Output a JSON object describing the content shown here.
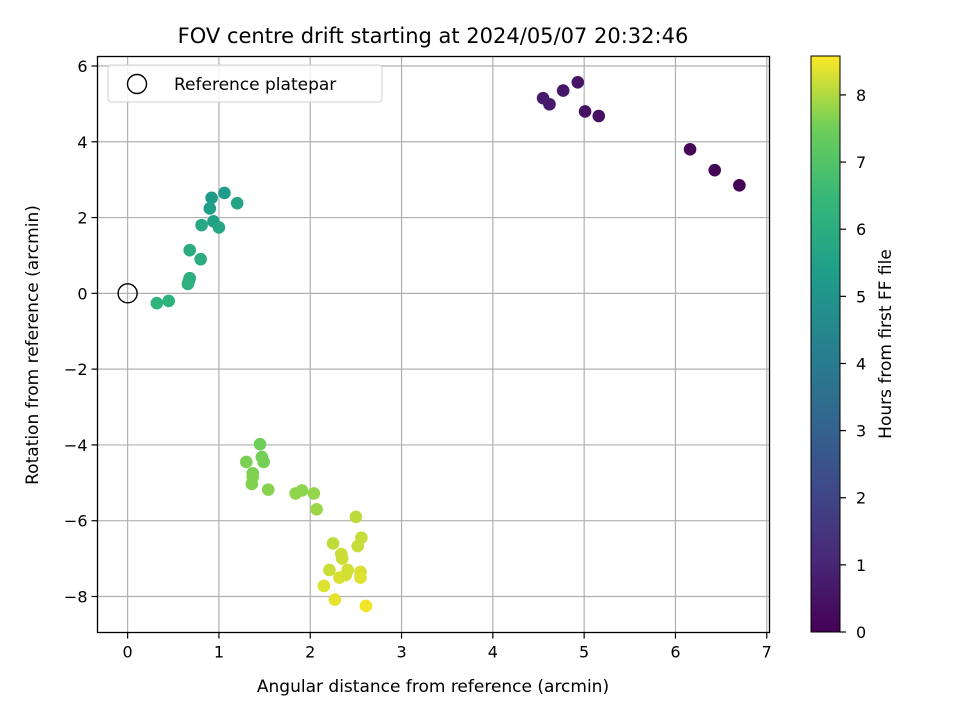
{
  "chart_data": {
    "type": "scatter",
    "title": "FOV centre drift starting at 2024/05/07 20:32:46",
    "xlabel": "Angular distance from reference (arcmin)",
    "ylabel": "Rotation from reference (arcmin)",
    "xlim": [
      -0.33,
      7.03
    ],
    "ylim": [
      -8.95,
      6.25
    ],
    "xticks": [
      0,
      1,
      2,
      3,
      4,
      5,
      6,
      7
    ],
    "yticks": [
      -8,
      -6,
      -4,
      -2,
      0,
      2,
      4,
      6
    ],
    "xtick_labels": [
      "0",
      "1",
      "2",
      "3",
      "4",
      "5",
      "6",
      "7"
    ],
    "ytick_labels": [
      "−8",
      "−6",
      "−4",
      "−2",
      "0",
      "2",
      "4",
      "6"
    ],
    "grid": true,
    "legend": {
      "placement": "top-left",
      "entries": [
        {
          "label": "Reference platepar",
          "marker": "open-circle"
        }
      ]
    },
    "reference_point": {
      "x": 0,
      "y": 0
    },
    "colorbar": {
      "label": "Hours from first FF file",
      "range": [
        0,
        8.58
      ],
      "ticks": [
        0,
        1,
        2,
        3,
        4,
        5,
        6,
        7,
        8
      ],
      "tick_labels": [
        "0",
        "1",
        "2",
        "3",
        "4",
        "5",
        "6",
        "7",
        "8"
      ],
      "colormap": "viridis"
    },
    "points": [
      {
        "x": 6.7,
        "y": 2.85,
        "c": 0.05
      },
      {
        "x": 6.43,
        "y": 3.25,
        "c": 0.1
      },
      {
        "x": 6.16,
        "y": 3.8,
        "c": 0.15
      },
      {
        "x": 5.16,
        "y": 4.68,
        "c": 0.45
      },
      {
        "x": 5.01,
        "y": 4.8,
        "c": 0.5
      },
      {
        "x": 4.93,
        "y": 5.57,
        "c": 0.55
      },
      {
        "x": 4.77,
        "y": 5.35,
        "c": 0.6
      },
      {
        "x": 4.62,
        "y": 4.99,
        "c": 0.65
      },
      {
        "x": 4.55,
        "y": 5.15,
        "c": 0.7
      },
      {
        "x": 1.06,
        "y": 2.65,
        "c": 5.2
      },
      {
        "x": 0.92,
        "y": 2.52,
        "c": 5.3
      },
      {
        "x": 0.9,
        "y": 2.24,
        "c": 5.4
      },
      {
        "x": 0.94,
        "y": 1.9,
        "c": 5.5
      },
      {
        "x": 1.2,
        "y": 2.38,
        "c": 5.6
      },
      {
        "x": 1.0,
        "y": 1.74,
        "c": 5.7
      },
      {
        "x": 0.81,
        "y": 1.8,
        "c": 5.8
      },
      {
        "x": 0.68,
        "y": 1.14,
        "c": 5.9
      },
      {
        "x": 0.8,
        "y": 0.9,
        "c": 6.0
      },
      {
        "x": 0.68,
        "y": 0.4,
        "c": 6.05
      },
      {
        "x": 0.67,
        "y": 0.32,
        "c": 6.1
      },
      {
        "x": 0.66,
        "y": 0.25,
        "c": 6.15
      },
      {
        "x": 0.45,
        "y": -0.2,
        "c": 6.2
      },
      {
        "x": 0.32,
        "y": -0.26,
        "c": 6.25
      },
      {
        "x": 1.45,
        "y": -3.98,
        "c": 7.5
      },
      {
        "x": 1.47,
        "y": -4.32,
        "c": 7.55
      },
      {
        "x": 1.49,
        "y": -4.45,
        "c": 7.55
      },
      {
        "x": 1.3,
        "y": -4.45,
        "c": 7.6
      },
      {
        "x": 1.37,
        "y": -4.75,
        "c": 7.6
      },
      {
        "x": 1.37,
        "y": -4.85,
        "c": 7.65
      },
      {
        "x": 1.36,
        "y": -5.03,
        "c": 7.65
      },
      {
        "x": 1.54,
        "y": -5.18,
        "c": 7.7
      },
      {
        "x": 1.84,
        "y": -5.28,
        "c": 7.75
      },
      {
        "x": 1.91,
        "y": -5.2,
        "c": 7.75
      },
      {
        "x": 2.04,
        "y": -5.28,
        "c": 7.8
      },
      {
        "x": 2.07,
        "y": -5.7,
        "c": 7.85
      },
      {
        "x": 2.5,
        "y": -5.9,
        "c": 8.1
      },
      {
        "x": 2.56,
        "y": -6.45,
        "c": 8.15
      },
      {
        "x": 2.52,
        "y": -6.67,
        "c": 8.15
      },
      {
        "x": 2.25,
        "y": -6.6,
        "c": 8.1
      },
      {
        "x": 2.34,
        "y": -6.88,
        "c": 8.2
      },
      {
        "x": 2.35,
        "y": -7.0,
        "c": 8.2
      },
      {
        "x": 2.21,
        "y": -7.3,
        "c": 8.2
      },
      {
        "x": 2.41,
        "y": -7.3,
        "c": 8.25
      },
      {
        "x": 2.39,
        "y": -7.43,
        "c": 8.25
      },
      {
        "x": 2.32,
        "y": -7.5,
        "c": 8.3
      },
      {
        "x": 2.55,
        "y": -7.35,
        "c": 8.3
      },
      {
        "x": 2.55,
        "y": -7.5,
        "c": 8.35
      },
      {
        "x": 2.15,
        "y": -7.72,
        "c": 8.35
      },
      {
        "x": 2.27,
        "y": -8.08,
        "c": 8.4
      },
      {
        "x": 2.61,
        "y": -8.25,
        "c": 8.5
      }
    ]
  }
}
